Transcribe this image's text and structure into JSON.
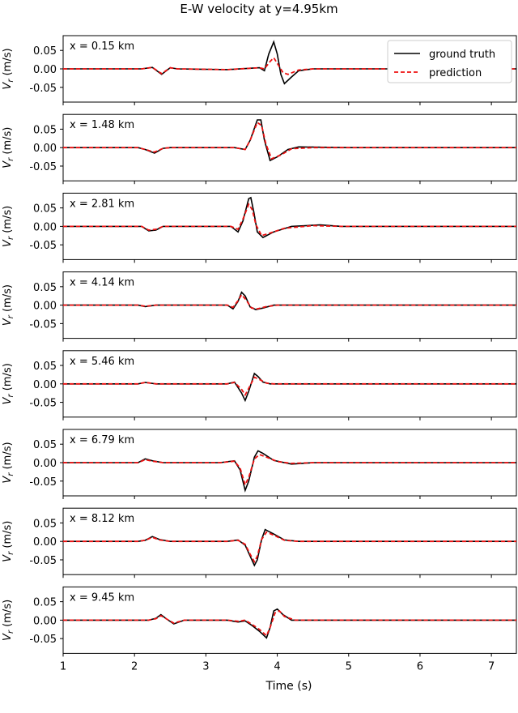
{
  "figure_title": "E-W velocity at y=4.95km",
  "legend": {
    "ground_truth": "ground truth",
    "prediction": "prediction",
    "placement": "top-right of first panel"
  },
  "colors": {
    "ground_truth": "#000000",
    "prediction": "#ee1111"
  },
  "chart_data": {
    "type": "line",
    "title": "E-W velocity at y=4.95km",
    "xlabel": "Time (s)",
    "ylabel": "V_r (m/s)",
    "xlim": [
      1,
      7.35
    ],
    "ylim": [
      -0.09,
      0.09
    ],
    "xticks": [
      "1",
      "2",
      "3",
      "4",
      "5",
      "6",
      "7"
    ],
    "yticks": [
      "0.05",
      "0.00",
      "-0.05"
    ],
    "grid": false,
    "panels": [
      {
        "label": "x = 0.15 km",
        "ground_truth": [
          [
            1,
            0
          ],
          [
            2.1,
            0
          ],
          [
            2.25,
            0.004
          ],
          [
            2.38,
            -0.015
          ],
          [
            2.5,
            0.003
          ],
          [
            2.6,
            0
          ],
          [
            3.3,
            -0.002
          ],
          [
            3.75,
            0.003
          ],
          [
            3.82,
            -0.005
          ],
          [
            3.88,
            0.04
          ],
          [
            3.95,
            0.073
          ],
          [
            4.0,
            0.04
          ],
          [
            4.05,
            -0.015
          ],
          [
            4.1,
            -0.04
          ],
          [
            4.2,
            -0.022
          ],
          [
            4.3,
            -0.005
          ],
          [
            4.5,
            0
          ],
          [
            7.35,
            0
          ]
        ],
        "prediction": [
          [
            1,
            0
          ],
          [
            2.1,
            0
          ],
          [
            2.25,
            0.004
          ],
          [
            2.38,
            -0.013
          ],
          [
            2.5,
            0.003
          ],
          [
            2.6,
            0
          ],
          [
            3.3,
            -0.002
          ],
          [
            3.75,
            0.003
          ],
          [
            3.82,
            0
          ],
          [
            3.9,
            0.02
          ],
          [
            3.95,
            0.03
          ],
          [
            4.0,
            0.015
          ],
          [
            4.08,
            -0.01
          ],
          [
            4.15,
            -0.015
          ],
          [
            4.3,
            -0.003
          ],
          [
            4.5,
            0
          ],
          [
            7.35,
            0
          ]
        ]
      },
      {
        "label": "x = 1.48 km",
        "ground_truth": [
          [
            1,
            0
          ],
          [
            2.05,
            0
          ],
          [
            2.15,
            -0.005
          ],
          [
            2.28,
            -0.015
          ],
          [
            2.4,
            -0.002
          ],
          [
            2.5,
            0
          ],
          [
            3.4,
            0
          ],
          [
            3.55,
            -0.005
          ],
          [
            3.62,
            0.02
          ],
          [
            3.72,
            0.075
          ],
          [
            3.77,
            0.075
          ],
          [
            3.82,
            0.02
          ],
          [
            3.9,
            -0.035
          ],
          [
            4.0,
            -0.025
          ],
          [
            4.15,
            -0.005
          ],
          [
            4.3,
            0.002
          ],
          [
            4.6,
            0.001
          ],
          [
            5.0,
            0
          ],
          [
            7.35,
            0
          ]
        ],
        "prediction": [
          [
            1,
            0
          ],
          [
            2.05,
            0
          ],
          [
            2.15,
            -0.005
          ],
          [
            2.28,
            -0.012
          ],
          [
            2.4,
            -0.002
          ],
          [
            2.5,
            0
          ],
          [
            3.4,
            0
          ],
          [
            3.55,
            -0.005
          ],
          [
            3.62,
            0.02
          ],
          [
            3.72,
            0.068
          ],
          [
            3.78,
            0.06
          ],
          [
            3.84,
            0.01
          ],
          [
            3.92,
            -0.03
          ],
          [
            4.05,
            -0.02
          ],
          [
            4.2,
            -0.003
          ],
          [
            4.5,
            0
          ],
          [
            7.35,
            0
          ]
        ]
      },
      {
        "label": "x = 2.81 km",
        "ground_truth": [
          [
            1,
            0
          ],
          [
            2.1,
            0
          ],
          [
            2.2,
            -0.012
          ],
          [
            2.3,
            -0.01
          ],
          [
            2.4,
            0
          ],
          [
            3.35,
            0
          ],
          [
            3.45,
            -0.015
          ],
          [
            3.52,
            0.015
          ],
          [
            3.6,
            0.075
          ],
          [
            3.63,
            0.078
          ],
          [
            3.67,
            0.04
          ],
          [
            3.72,
            -0.015
          ],
          [
            3.8,
            -0.03
          ],
          [
            3.95,
            -0.015
          ],
          [
            4.2,
            0
          ],
          [
            4.6,
            0.004
          ],
          [
            4.9,
            0
          ],
          [
            7.35,
            0
          ]
        ],
        "prediction": [
          [
            1,
            0
          ],
          [
            2.1,
            0
          ],
          [
            2.2,
            -0.01
          ],
          [
            2.3,
            -0.008
          ],
          [
            2.4,
            0
          ],
          [
            3.35,
            0
          ],
          [
            3.45,
            -0.008
          ],
          [
            3.52,
            0.02
          ],
          [
            3.6,
            0.06
          ],
          [
            3.65,
            0.045
          ],
          [
            3.7,
            0.005
          ],
          [
            3.78,
            -0.025
          ],
          [
            3.9,
            -0.018
          ],
          [
            4.1,
            -0.005
          ],
          [
            4.5,
            0.002
          ],
          [
            4.9,
            0
          ],
          [
            7.35,
            0
          ]
        ]
      },
      {
        "label": "x = 4.14 km",
        "ground_truth": [
          [
            1,
            0
          ],
          [
            2.05,
            0
          ],
          [
            2.15,
            -0.004
          ],
          [
            2.3,
            0
          ],
          [
            3.3,
            0
          ],
          [
            3.38,
            -0.01
          ],
          [
            3.45,
            0.01
          ],
          [
            3.5,
            0.035
          ],
          [
            3.55,
            0.025
          ],
          [
            3.62,
            -0.005
          ],
          [
            3.7,
            -0.012
          ],
          [
            3.8,
            -0.008
          ],
          [
            3.95,
            0
          ],
          [
            7.35,
            0
          ]
        ],
        "prediction": [
          [
            1,
            0
          ],
          [
            2.05,
            0
          ],
          [
            2.15,
            -0.003
          ],
          [
            2.3,
            0
          ],
          [
            3.3,
            0
          ],
          [
            3.38,
            -0.006
          ],
          [
            3.45,
            0.012
          ],
          [
            3.5,
            0.028
          ],
          [
            3.56,
            0.015
          ],
          [
            3.64,
            -0.008
          ],
          [
            3.72,
            -0.01
          ],
          [
            3.85,
            -0.004
          ],
          [
            4.0,
            0
          ],
          [
            7.35,
            0
          ]
        ]
      },
      {
        "label": "x = 5.46 km",
        "ground_truth": [
          [
            1,
            0
          ],
          [
            2.05,
            0
          ],
          [
            2.15,
            0.004
          ],
          [
            2.3,
            0
          ],
          [
            3.3,
            0
          ],
          [
            3.4,
            0.005
          ],
          [
            3.5,
            -0.025
          ],
          [
            3.55,
            -0.045
          ],
          [
            3.6,
            -0.02
          ],
          [
            3.68,
            0.028
          ],
          [
            3.73,
            0.02
          ],
          [
            3.8,
            0.005
          ],
          [
            3.9,
            0
          ],
          [
            7.35,
            0
          ]
        ],
        "prediction": [
          [
            1,
            0
          ],
          [
            2.05,
            0
          ],
          [
            2.15,
            0.004
          ],
          [
            2.3,
            0
          ],
          [
            3.3,
            0
          ],
          [
            3.4,
            0.004
          ],
          [
            3.5,
            -0.015
          ],
          [
            3.55,
            -0.03
          ],
          [
            3.6,
            -0.012
          ],
          [
            3.68,
            0.018
          ],
          [
            3.75,
            0.012
          ],
          [
            3.85,
            0.002
          ],
          [
            3.95,
            0
          ],
          [
            7.35,
            0
          ]
        ]
      },
      {
        "label": "x = 6.79 km",
        "ground_truth": [
          [
            1,
            0
          ],
          [
            2.05,
            0
          ],
          [
            2.15,
            0.01
          ],
          [
            2.25,
            0.005
          ],
          [
            2.4,
            0
          ],
          [
            3.2,
            0
          ],
          [
            3.4,
            0.005
          ],
          [
            3.48,
            -0.02
          ],
          [
            3.55,
            -0.075
          ],
          [
            3.6,
            -0.05
          ],
          [
            3.68,
            0.015
          ],
          [
            3.73,
            0.032
          ],
          [
            3.8,
            0.025
          ],
          [
            3.95,
            0.006
          ],
          [
            4.2,
            -0.004
          ],
          [
            4.5,
            0
          ],
          [
            7.35,
            0
          ]
        ],
        "prediction": [
          [
            1,
            0
          ],
          [
            2.05,
            0
          ],
          [
            2.15,
            0.008
          ],
          [
            2.25,
            0.004
          ],
          [
            2.4,
            0
          ],
          [
            3.2,
            0
          ],
          [
            3.4,
            0.004
          ],
          [
            3.48,
            -0.015
          ],
          [
            3.55,
            -0.06
          ],
          [
            3.6,
            -0.04
          ],
          [
            3.68,
            0.01
          ],
          [
            3.75,
            0.022
          ],
          [
            3.85,
            0.015
          ],
          [
            4.0,
            0.003
          ],
          [
            4.2,
            -0.002
          ],
          [
            4.5,
            0
          ],
          [
            7.35,
            0
          ]
        ]
      },
      {
        "label": "x = 8.12 km",
        "ground_truth": [
          [
            1,
            0
          ],
          [
            2.05,
            0
          ],
          [
            2.15,
            0.003
          ],
          [
            2.25,
            0.013
          ],
          [
            2.35,
            0.005
          ],
          [
            2.5,
            0
          ],
          [
            3.3,
            0
          ],
          [
            3.45,
            0.004
          ],
          [
            3.55,
            -0.01
          ],
          [
            3.62,
            -0.04
          ],
          [
            3.68,
            -0.065
          ],
          [
            3.72,
            -0.05
          ],
          [
            3.78,
            0.005
          ],
          [
            3.83,
            0.032
          ],
          [
            3.95,
            0.02
          ],
          [
            4.1,
            0.004
          ],
          [
            4.3,
            0
          ],
          [
            7.35,
            0
          ]
        ],
        "prediction": [
          [
            1,
            0
          ],
          [
            2.05,
            0
          ],
          [
            2.15,
            0.003
          ],
          [
            2.25,
            0.011
          ],
          [
            2.35,
            0.004
          ],
          [
            2.5,
            0
          ],
          [
            3.3,
            0
          ],
          [
            3.45,
            0.003
          ],
          [
            3.55,
            -0.008
          ],
          [
            3.62,
            -0.035
          ],
          [
            3.68,
            -0.055
          ],
          [
            3.72,
            -0.04
          ],
          [
            3.78,
            0.005
          ],
          [
            3.85,
            0.025
          ],
          [
            3.95,
            0.017
          ],
          [
            4.1,
            0.003
          ],
          [
            4.3,
            0
          ],
          [
            7.35,
            0
          ]
        ]
      },
      {
        "label": "x = 9.45 km",
        "ground_truth": [
          [
            1,
            0
          ],
          [
            2.2,
            0
          ],
          [
            2.3,
            0.005
          ],
          [
            2.37,
            0.015
          ],
          [
            2.45,
            0.003
          ],
          [
            2.55,
            -0.01
          ],
          [
            2.7,
            0
          ],
          [
            3.3,
            0
          ],
          [
            3.45,
            -0.005
          ],
          [
            3.55,
            -0.002
          ],
          [
            3.65,
            -0.015
          ],
          [
            3.75,
            -0.03
          ],
          [
            3.85,
            -0.048
          ],
          [
            3.9,
            -0.02
          ],
          [
            3.95,
            0.025
          ],
          [
            4.0,
            0.03
          ],
          [
            4.08,
            0.015
          ],
          [
            4.2,
            0
          ],
          [
            7.35,
            0
          ]
        ],
        "prediction": [
          [
            1,
            0
          ],
          [
            2.2,
            0
          ],
          [
            2.3,
            0.004
          ],
          [
            2.37,
            0.012
          ],
          [
            2.45,
            0.003
          ],
          [
            2.55,
            -0.008
          ],
          [
            2.7,
            0
          ],
          [
            3.3,
            0
          ],
          [
            3.45,
            -0.003
          ],
          [
            3.55,
            0
          ],
          [
            3.65,
            -0.012
          ],
          [
            3.75,
            -0.025
          ],
          [
            3.85,
            -0.042
          ],
          [
            3.9,
            -0.02
          ],
          [
            3.97,
            0.02
          ],
          [
            4.03,
            0.025
          ],
          [
            4.1,
            0.01
          ],
          [
            4.25,
            0
          ],
          [
            7.35,
            0
          ]
        ]
      }
    ]
  }
}
